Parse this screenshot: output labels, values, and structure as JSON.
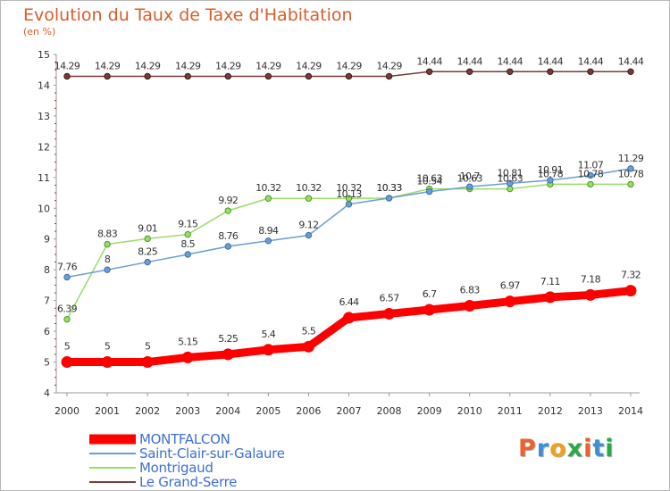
{
  "title": "Evolution du Taux de Taxe d'Habitation",
  "subtitle": "(en %)",
  "brand": {
    "text": "Proxiti",
    "letter_colors": [
      "#e8642c",
      "#3d8fd8",
      "#f0a020",
      "#2aa84a",
      "#e8642c",
      "#3d8fd8",
      "#2aa84a"
    ]
  },
  "chart_data": {
    "type": "line",
    "title": "Evolution du Taux de Taxe d'Habitation",
    "ylabel": "(en %)",
    "xlabel": "",
    "x": [
      "2000",
      "2001",
      "2002",
      "2003",
      "2004",
      "2005",
      "2006",
      "2007",
      "2008",
      "2009",
      "2010",
      "2011",
      "2012",
      "2013",
      "2014"
    ],
    "ylim": [
      4,
      15
    ],
    "yticks": [
      "4",
      "5",
      "6",
      "7",
      "8",
      "9",
      "10",
      "11",
      "12",
      "13",
      "14",
      "15"
    ],
    "grid": false,
    "legend_position": "bottom-left",
    "series": [
      {
        "name": "MONTFALCON",
        "color": "#ff0000",
        "values": [
          5,
          5,
          5,
          5.15,
          5.25,
          5.4,
          5.5,
          6.44,
          6.57,
          6.7,
          6.83,
          6.97,
          7.11,
          7.18,
          7.32
        ],
        "labels": [
          "5",
          "5",
          "5",
          "5.15",
          "5.25",
          "5.4",
          "5.5",
          "6.44",
          "6.57",
          "6.7",
          "6.83",
          "6.97",
          "7.11",
          "7.18",
          "7.32"
        ]
      },
      {
        "name": "Saint-Clair-sur-Galaure",
        "color": "#6a9ed6",
        "values": [
          7.76,
          8,
          8.25,
          8.5,
          8.76,
          8.94,
          9.12,
          10.13,
          10.33,
          10.54,
          10.7,
          10.81,
          10.91,
          11.07,
          11.29
        ],
        "labels": [
          "7.76",
          "8",
          "8.25",
          "8.5",
          "8.76",
          "8.94",
          "9.12",
          "10.13",
          "10.33",
          "10.54",
          "10.7",
          "10.81",
          "10.91",
          "11.07",
          "11.29"
        ]
      },
      {
        "name": "Montrigaud",
        "color": "#99dd66",
        "values": [
          6.39,
          8.83,
          9.01,
          9.15,
          9.92,
          10.32,
          10.32,
          10.32,
          10.33,
          10.63,
          10.63,
          10.63,
          10.78,
          10.78,
          10.78
        ],
        "labels": [
          "6.39",
          "8.83",
          "9.01",
          "9.15",
          "9.92",
          "10.32",
          "10.32",
          "10.32",
          "10.33",
          "10.63",
          "10.63",
          "10.63",
          "10.78",
          "10.78",
          "10.78"
        ]
      },
      {
        "name": "Le Grand-Serre",
        "color": "#7a3a3a",
        "values": [
          14.29,
          14.29,
          14.29,
          14.29,
          14.29,
          14.29,
          14.29,
          14.29,
          14.29,
          14.44,
          14.44,
          14.44,
          14.44,
          14.44,
          14.44
        ],
        "labels": [
          "14.29",
          "14.29",
          "14.29",
          "14.29",
          "14.29",
          "14.29",
          "14.29",
          "14.29",
          "14.29",
          "14.44",
          "14.44",
          "14.44",
          "14.44",
          "14.44",
          "14.44"
        ]
      }
    ]
  }
}
